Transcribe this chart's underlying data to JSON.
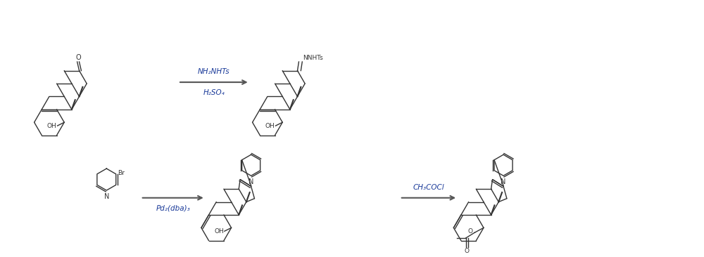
{
  "background_color": "#ffffff",
  "figure_width": 10.0,
  "figure_height": 3.66,
  "dpi": 100,
  "reagent1_above": "NH₂NHTs",
  "reagent1_below": "H₂SO₄",
  "reagent2_below": "Pd₂(dba)₃",
  "reagent3_above": "CH₃COCl",
  "text_color": "#1a3a99",
  "struct_line_color": "#333333",
  "arrow_color": "#555555"
}
